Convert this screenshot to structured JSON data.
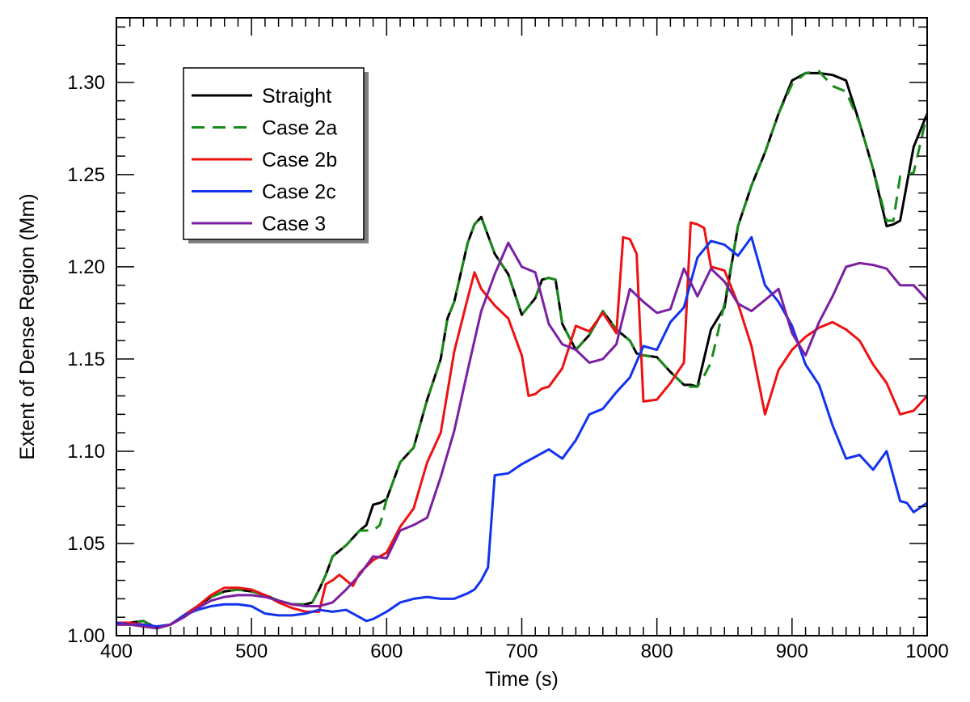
{
  "chart_data": {
    "type": "line",
    "title": "",
    "xlabel": "Time (s)",
    "ylabel": "Extent of Dense Region (Mm)",
    "xlim": [
      400,
      1000
    ],
    "ylim": [
      1.0,
      1.335
    ],
    "xticks": [
      400,
      500,
      600,
      700,
      800,
      900,
      1000
    ],
    "xtick_labels": [
      "400",
      "500",
      "600",
      "700",
      "800",
      "900",
      "1000"
    ],
    "yticks": [
      1.0,
      1.05,
      1.1,
      1.15,
      1.2,
      1.25,
      1.3
    ],
    "ytick_labels": [
      "1.00",
      "1.05",
      "1.10",
      "1.15",
      "1.20",
      "1.25",
      "1.30"
    ],
    "grid": false,
    "legend_position": "top-left",
    "series": [
      {
        "name": "Straight",
        "color": "#000000",
        "dash": "solid",
        "x": [
          400,
          410,
          420,
          430,
          440,
          450,
          460,
          470,
          480,
          490,
          500,
          510,
          520,
          530,
          540,
          545,
          550,
          555,
          560,
          570,
          580,
          585,
          590,
          595,
          600,
          610,
          620,
          630,
          640,
          645,
          650,
          660,
          665,
          670,
          680,
          690,
          700,
          710,
          715,
          720,
          725,
          730,
          740,
          750,
          760,
          770,
          780,
          785,
          790,
          800,
          810,
          820,
          825,
          830,
          840,
          850,
          860,
          870,
          880,
          890,
          900,
          910,
          920,
          930,
          940,
          950,
          960,
          970,
          975,
          980,
          990,
          1000
        ],
        "y": [
          1.007,
          1.007,
          1.008,
          1.004,
          1.006,
          1.011,
          1.016,
          1.021,
          1.024,
          1.025,
          1.024,
          1.022,
          1.019,
          1.017,
          1.017,
          1.018,
          1.025,
          1.033,
          1.043,
          1.049,
          1.057,
          1.06,
          1.071,
          1.072,
          1.074,
          1.094,
          1.102,
          1.128,
          1.15,
          1.172,
          1.181,
          1.213,
          1.223,
          1.227,
          1.207,
          1.196,
          1.174,
          1.183,
          1.193,
          1.194,
          1.193,
          1.169,
          1.155,
          1.163,
          1.176,
          1.166,
          1.16,
          1.153,
          1.152,
          1.151,
          1.143,
          1.136,
          1.136,
          1.135,
          1.166,
          1.178,
          1.222,
          1.244,
          1.262,
          1.283,
          1.301,
          1.305,
          1.305,
          1.304,
          1.301,
          1.278,
          1.253,
          1.222,
          1.223,
          1.225,
          1.265,
          1.283
        ]
      },
      {
        "name": "Case 2a",
        "color": "#1a8a1a",
        "dash": "dashed",
        "x": [
          400,
          410,
          420,
          430,
          440,
          450,
          460,
          470,
          480,
          490,
          500,
          510,
          520,
          530,
          540,
          545,
          550,
          555,
          560,
          570,
          580,
          585,
          590,
          595,
          600,
          610,
          620,
          630,
          640,
          645,
          650,
          660,
          665,
          670,
          680,
          690,
          700,
          710,
          715,
          720,
          725,
          730,
          740,
          750,
          760,
          770,
          780,
          785,
          790,
          800,
          810,
          820,
          825,
          830,
          835,
          840,
          850,
          860,
          870,
          880,
          890,
          900,
          910,
          920,
          930,
          940,
          950,
          960,
          970,
          975,
          980,
          990,
          1000
        ],
        "y": [
          1.007,
          1.007,
          1.008,
          1.004,
          1.006,
          1.011,
          1.016,
          1.021,
          1.024,
          1.025,
          1.024,
          1.022,
          1.019,
          1.017,
          1.017,
          1.018,
          1.025,
          1.033,
          1.043,
          1.049,
          1.057,
          1.057,
          1.057,
          1.06,
          1.074,
          1.094,
          1.102,
          1.128,
          1.15,
          1.172,
          1.181,
          1.213,
          1.223,
          1.227,
          1.207,
          1.196,
          1.174,
          1.183,
          1.193,
          1.194,
          1.193,
          1.169,
          1.155,
          1.163,
          1.176,
          1.166,
          1.16,
          1.153,
          1.152,
          1.151,
          1.143,
          1.136,
          1.135,
          1.135,
          1.141,
          1.148,
          1.18,
          1.222,
          1.244,
          1.262,
          1.283,
          1.299,
          1.305,
          1.306,
          1.298,
          1.295,
          1.278,
          1.253,
          1.225,
          1.225,
          1.249,
          1.251,
          1.283
        ]
      },
      {
        "name": "Case 2b",
        "color": "#ee1111",
        "dash": "solid",
        "x": [
          400,
          410,
          420,
          430,
          440,
          450,
          460,
          470,
          480,
          490,
          500,
          510,
          520,
          530,
          540,
          550,
          555,
          560,
          565,
          570,
          575,
          580,
          590,
          600,
          610,
          620,
          630,
          640,
          650,
          660,
          665,
          670,
          680,
          690,
          700,
          705,
          710,
          715,
          720,
          730,
          740,
          750,
          760,
          770,
          775,
          780,
          785,
          790,
          800,
          810,
          820,
          825,
          830,
          835,
          840,
          850,
          860,
          870,
          880,
          890,
          900,
          910,
          920,
          930,
          940,
          950,
          960,
          970,
          980,
          990,
          1000
        ],
        "y": [
          1.007,
          1.007,
          1.006,
          1.005,
          1.006,
          1.011,
          1.016,
          1.022,
          1.026,
          1.026,
          1.025,
          1.022,
          1.018,
          1.015,
          1.013,
          1.013,
          1.028,
          1.03,
          1.033,
          1.03,
          1.027,
          1.034,
          1.041,
          1.045,
          1.059,
          1.069,
          1.094,
          1.11,
          1.154,
          1.183,
          1.197,
          1.188,
          1.179,
          1.172,
          1.152,
          1.13,
          1.131,
          1.134,
          1.135,
          1.145,
          1.168,
          1.165,
          1.175,
          1.164,
          1.216,
          1.215,
          1.207,
          1.127,
          1.128,
          1.137,
          1.148,
          1.224,
          1.223,
          1.221,
          1.2,
          1.198,
          1.18,
          1.157,
          1.12,
          1.144,
          1.155,
          1.162,
          1.167,
          1.17,
          1.166,
          1.16,
          1.147,
          1.137,
          1.12,
          1.122,
          1.13
        ]
      },
      {
        "name": "Case 2c",
        "color": "#1133ee",
        "dash": "solid",
        "x": [
          400,
          410,
          420,
          430,
          440,
          450,
          460,
          470,
          480,
          490,
          500,
          510,
          520,
          530,
          540,
          550,
          560,
          570,
          580,
          585,
          590,
          600,
          610,
          620,
          630,
          640,
          650,
          660,
          665,
          670,
          675,
          680,
          690,
          700,
          710,
          720,
          730,
          740,
          750,
          760,
          770,
          780,
          790,
          800,
          810,
          820,
          830,
          840,
          850,
          860,
          870,
          880,
          890,
          900,
          910,
          920,
          930,
          940,
          950,
          960,
          970,
          980,
          985,
          990,
          1000
        ],
        "y": [
          1.007,
          1.006,
          1.006,
          1.005,
          1.006,
          1.011,
          1.014,
          1.016,
          1.017,
          1.017,
          1.016,
          1.012,
          1.011,
          1.011,
          1.012,
          1.014,
          1.013,
          1.014,
          1.01,
          1.008,
          1.009,
          1.013,
          1.018,
          1.02,
          1.021,
          1.02,
          1.02,
          1.023,
          1.025,
          1.03,
          1.037,
          1.087,
          1.088,
          1.093,
          1.097,
          1.101,
          1.096,
          1.106,
          1.12,
          1.123,
          1.132,
          1.14,
          1.157,
          1.155,
          1.17,
          1.178,
          1.205,
          1.214,
          1.212,
          1.206,
          1.216,
          1.19,
          1.181,
          1.168,
          1.147,
          1.136,
          1.114,
          1.096,
          1.098,
          1.09,
          1.1,
          1.073,
          1.072,
          1.067,
          1.072
        ]
      },
      {
        "name": "Case 3",
        "color": "#7b1fa2",
        "dash": "solid",
        "x": [
          400,
          410,
          420,
          430,
          440,
          450,
          460,
          470,
          480,
          490,
          500,
          510,
          520,
          530,
          540,
          550,
          560,
          570,
          580,
          590,
          600,
          610,
          620,
          630,
          640,
          650,
          660,
          670,
          680,
          690,
          700,
          710,
          720,
          730,
          740,
          750,
          760,
          770,
          780,
          790,
          800,
          810,
          820,
          830,
          840,
          850,
          860,
          870,
          880,
          890,
          900,
          910,
          920,
          930,
          940,
          950,
          960,
          970,
          980,
          990,
          1000
        ],
        "y": [
          1.006,
          1.006,
          1.005,
          1.004,
          1.006,
          1.01,
          1.015,
          1.019,
          1.021,
          1.022,
          1.022,
          1.021,
          1.019,
          1.017,
          1.016,
          1.016,
          1.018,
          1.025,
          1.033,
          1.043,
          1.042,
          1.057,
          1.06,
          1.064,
          1.086,
          1.111,
          1.144,
          1.176,
          1.196,
          1.213,
          1.2,
          1.197,
          1.169,
          1.158,
          1.155,
          1.148,
          1.15,
          1.158,
          1.188,
          1.181,
          1.175,
          1.177,
          1.199,
          1.184,
          1.199,
          1.192,
          1.18,
          1.176,
          1.182,
          1.188,
          1.164,
          1.152,
          1.17,
          1.184,
          1.2,
          1.202,
          1.201,
          1.199,
          1.19,
          1.19,
          1.182
        ]
      }
    ]
  }
}
